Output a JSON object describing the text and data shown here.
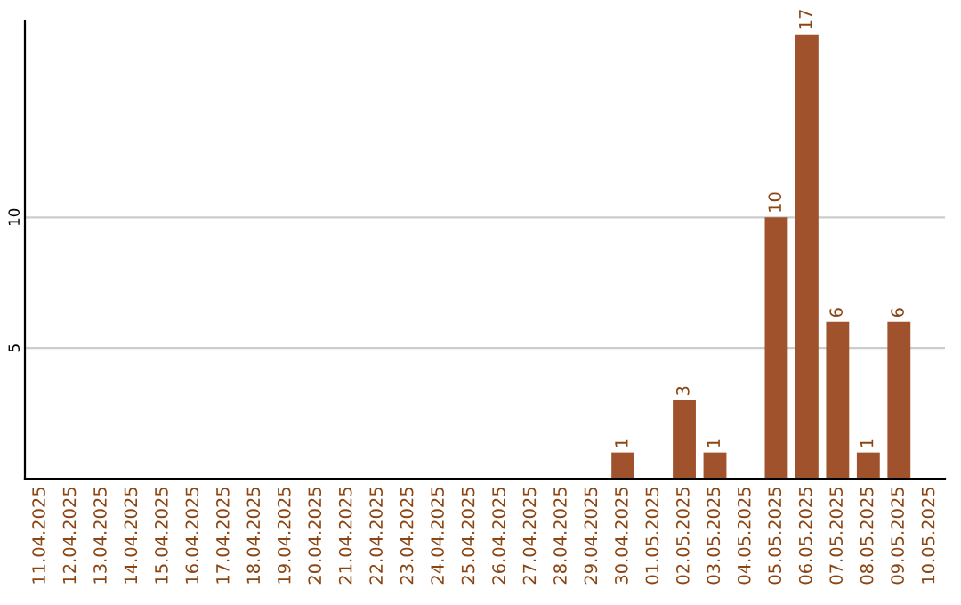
{
  "chart_data": {
    "type": "bar",
    "categories": [
      "11.04.2025",
      "12.04.2025",
      "13.04.2025",
      "14.04.2025",
      "15.04.2025",
      "16.04.2025",
      "17.04.2025",
      "18.04.2025",
      "19.04.2025",
      "20.04.2025",
      "21.04.2025",
      "22.04.2025",
      "23.04.2025",
      "24.04.2025",
      "25.04.2025",
      "26.04.2025",
      "27.04.2025",
      "28.04.2025",
      "29.04.2025",
      "30.04.2025",
      "01.05.2025",
      "02.05.2025",
      "03.05.2025",
      "04.05.2025",
      "05.05.2025",
      "06.05.2025",
      "07.05.2025",
      "08.05.2025",
      "09.05.2025",
      "10.05.2025"
    ],
    "values": [
      0,
      0,
      0,
      0,
      0,
      0,
      0,
      0,
      0,
      0,
      0,
      0,
      0,
      0,
      0,
      0,
      0,
      0,
      0,
      1,
      0,
      3,
      1,
      0,
      10,
      17,
      6,
      1,
      6,
      0
    ],
    "value_labels": [
      null,
      null,
      null,
      null,
      null,
      null,
      null,
      null,
      null,
      null,
      null,
      null,
      null,
      null,
      null,
      null,
      null,
      null,
      null,
      "1",
      null,
      "3",
      "1",
      null,
      "10",
      "17",
      "6",
      "1",
      "6",
      null
    ],
    "color": "#a0522d",
    "ylim": [
      0,
      17.5
    ],
    "yticks": [
      5,
      10
    ],
    "grid": "y"
  }
}
